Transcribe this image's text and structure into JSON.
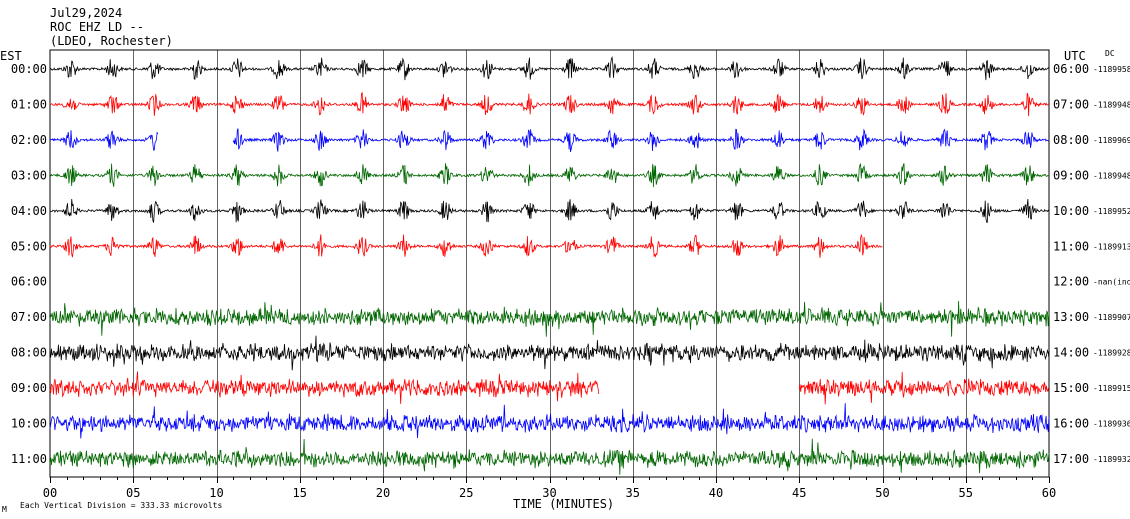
{
  "header": {
    "date": "Jul29,2024",
    "station": "ROC EHZ LD --",
    "network": "(LDEO, Rochester)"
  },
  "left_zone_label": "EST",
  "right_zone_label": "UTC",
  "dc_label": "DC",
  "footer": {
    "xlabel": "TIME (MINUTES)",
    "scale_note": "Each Vertical Division = 333.33 microvolts",
    "corner_mark": "M"
  },
  "colors": {
    "black": "#000000",
    "red": "#ff0000",
    "blue": "#0000ff",
    "green": "#006600",
    "grid": "#000000"
  },
  "chart_data": {
    "type": "line",
    "title": "",
    "xlabel": "TIME (MINUTES)",
    "ylabel": "",
    "xlim": [
      0,
      60
    ],
    "x_ticks": [
      "00",
      "05",
      "10",
      "15",
      "20",
      "25",
      "30",
      "35",
      "40",
      "45",
      "50",
      "55",
      "60"
    ],
    "grid": true,
    "rows": [
      {
        "est": "00:00",
        "utc": "06:00",
        "dc": "-1189958",
        "color": "black",
        "end_min": 60,
        "start_min": 0,
        "activity": "bursts"
      },
      {
        "est": "01:00",
        "utc": "07:00",
        "dc": "-1189948",
        "color": "red",
        "end_min": 60,
        "start_min": 0,
        "activity": "bursts"
      },
      {
        "est": "02:00",
        "utc": "08:00",
        "dc": "-1189969",
        "color": "blue",
        "end_min": 60,
        "start_min": 0,
        "gap": [
          6.5,
          11
        ],
        "activity": "bursts"
      },
      {
        "est": "03:00",
        "utc": "09:00",
        "dc": "-1189948",
        "color": "green",
        "end_min": 60,
        "start_min": 0,
        "activity": "bursts"
      },
      {
        "est": "04:00",
        "utc": "10:00",
        "dc": "-1189952",
        "color": "black",
        "end_min": 60,
        "start_min": 0,
        "activity": "bursts"
      },
      {
        "est": "05:00",
        "utc": "11:00",
        "dc": "-1189913",
        "color": "red",
        "end_min": 50,
        "start_min": 0,
        "activity": "bursts"
      },
      {
        "est": "06:00",
        "utc": "12:00",
        "dc": "-nan(ind",
        "color": "blue",
        "end_min": 0,
        "start_min": 0,
        "activity": "none"
      },
      {
        "est": "07:00",
        "utc": "13:00",
        "dc": "-1189907",
        "color": "green",
        "end_min": 60,
        "start_min": 0,
        "activity": "noisy"
      },
      {
        "est": "08:00",
        "utc": "14:00",
        "dc": "-1189928",
        "color": "black",
        "end_min": 60,
        "start_min": 0,
        "activity": "noisy"
      },
      {
        "est": "09:00",
        "utc": "15:00",
        "dc": "-1189915",
        "color": "red",
        "end_min": 60,
        "start_min": 0,
        "gap": [
          33,
          45
        ],
        "activity": "noisy"
      },
      {
        "est": "10:00",
        "utc": "16:00",
        "dc": "-1189936",
        "color": "blue",
        "end_min": 60,
        "start_min": 0,
        "activity": "noisy"
      },
      {
        "est": "11:00",
        "utc": "17:00",
        "dc": "-1189932",
        "color": "green",
        "end_min": 60,
        "start_min": 0,
        "activity": "noisy"
      }
    ]
  }
}
